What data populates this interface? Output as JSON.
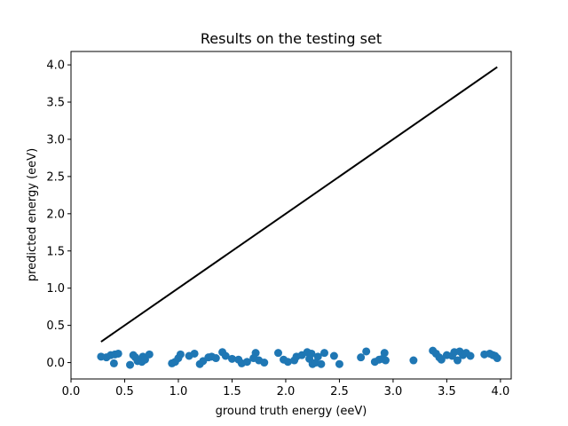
{
  "chart_data": {
    "type": "scatter",
    "title": "Results on the testing set",
    "xlabel": "ground truth energy (eeV)",
    "ylabel": "predicted energy (eeV)",
    "xlim": [
      0.0,
      4.1
    ],
    "ylim": [
      -0.22,
      4.18
    ],
    "xticks": [
      "0.0",
      "0.5",
      "1.0",
      "1.5",
      "2.0",
      "2.5",
      "3.0",
      "3.5",
      "4.0"
    ],
    "yticks": [
      "0.0",
      "0.5",
      "1.0",
      "1.5",
      "2.0",
      "2.5",
      "3.0",
      "3.5",
      "4.0"
    ],
    "grid": false,
    "colors": {
      "points": "#1f77b4",
      "line": "#000000"
    },
    "line": {
      "x": [
        0.28,
        3.97
      ],
      "y": [
        0.28,
        3.97
      ]
    },
    "points": {
      "x": [
        0.28,
        0.33,
        0.37,
        0.41,
        0.4,
        0.44,
        0.55,
        0.58,
        0.6,
        0.62,
        0.66,
        0.67,
        0.69,
        0.73,
        0.94,
        0.97,
        1.0,
        1.02,
        1.1,
        1.15,
        1.2,
        1.23,
        1.28,
        1.31,
        1.35,
        1.41,
        1.44,
        1.5,
        1.56,
        1.59,
        1.64,
        1.7,
        1.72,
        1.75,
        1.8,
        1.93,
        1.98,
        2.02,
        2.08,
        2.1,
        2.15,
        2.2,
        2.22,
        2.24,
        2.25,
        2.28,
        2.3,
        2.33,
        2.36,
        2.45,
        2.5,
        2.7,
        2.75,
        2.83,
        2.87,
        2.9,
        2.92,
        2.93,
        3.19,
        3.37,
        3.4,
        3.43,
        3.45,
        3.5,
        3.55,
        3.57,
        3.6,
        3.62,
        3.65,
        3.68,
        3.72,
        3.85,
        3.9,
        3.93,
        3.95,
        3.97
      ],
      "y": [
        0.08,
        0.07,
        0.1,
        0.11,
        -0.01,
        0.12,
        -0.03,
        0.1,
        0.07,
        0.02,
        0.01,
        0.08,
        0.04,
        0.11,
        -0.01,
        0.01,
        0.06,
        0.11,
        0.09,
        0.12,
        -0.02,
        0.02,
        0.07,
        0.08,
        0.06,
        0.14,
        0.09,
        0.05,
        0.04,
        -0.01,
        0.01,
        0.06,
        0.13,
        0.03,
        0.0,
        0.13,
        0.04,
        0.01,
        0.03,
        0.08,
        0.1,
        0.14,
        0.05,
        0.12,
        -0.02,
        0.0,
        0.08,
        -0.02,
        0.13,
        0.09,
        -0.02,
        0.07,
        0.15,
        0.01,
        0.04,
        0.05,
        0.13,
        0.03,
        0.03,
        0.16,
        0.12,
        0.07,
        0.04,
        0.1,
        0.09,
        0.14,
        0.03,
        0.15,
        0.1,
        0.13,
        0.09,
        0.11,
        0.12,
        0.1,
        0.09,
        0.06
      ]
    }
  }
}
